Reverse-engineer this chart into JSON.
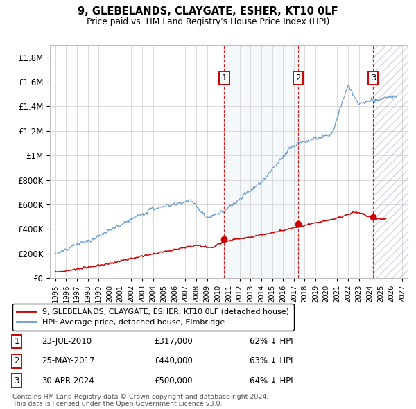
{
  "title": "9, GLEBELANDS, CLAYGATE, ESHER, KT10 0LF",
  "subtitle": "Price paid vs. HM Land Registry's House Price Index (HPI)",
  "ylim": [
    0,
    1900000
  ],
  "yticks": [
    0,
    200000,
    400000,
    600000,
    800000,
    1000000,
    1200000,
    1400000,
    1600000,
    1800000
  ],
  "ytick_labels": [
    "£0",
    "£200K",
    "£400K",
    "£600K",
    "£800K",
    "£1M",
    "£1.2M",
    "£1.4M",
    "£1.6M",
    "£1.8M"
  ],
  "x_start_year": 1995,
  "x_end_year": 2027,
  "sale_prices": [
    317000,
    440000,
    500000
  ],
  "sale_labels": [
    "1",
    "2",
    "3"
  ],
  "sale_date_strs": [
    "23-JUL-2010",
    "25-MAY-2017",
    "30-APR-2024"
  ],
  "sale_price_strs": [
    "£317,000",
    "£440,000",
    "£500,000"
  ],
  "sale_hpi_strs": [
    "62% ↓ HPI",
    "63% ↓ HPI",
    "64% ↓ HPI"
  ],
  "red_line_color": "#cc0000",
  "blue_line_color": "#6699cc",
  "legend_label_red": "9, GLEBELANDS, CLAYGATE, ESHER, KT10 0LF (detached house)",
  "legend_label_blue": "HPI: Average price, detached house, Elmbridge",
  "footer1": "Contains HM Land Registry data © Crown copyright and database right 2024.",
  "footer2": "This data is licensed under the Open Government Licence v3.0.",
  "background_color": "#ffffff",
  "grid_color": "#cccccc"
}
